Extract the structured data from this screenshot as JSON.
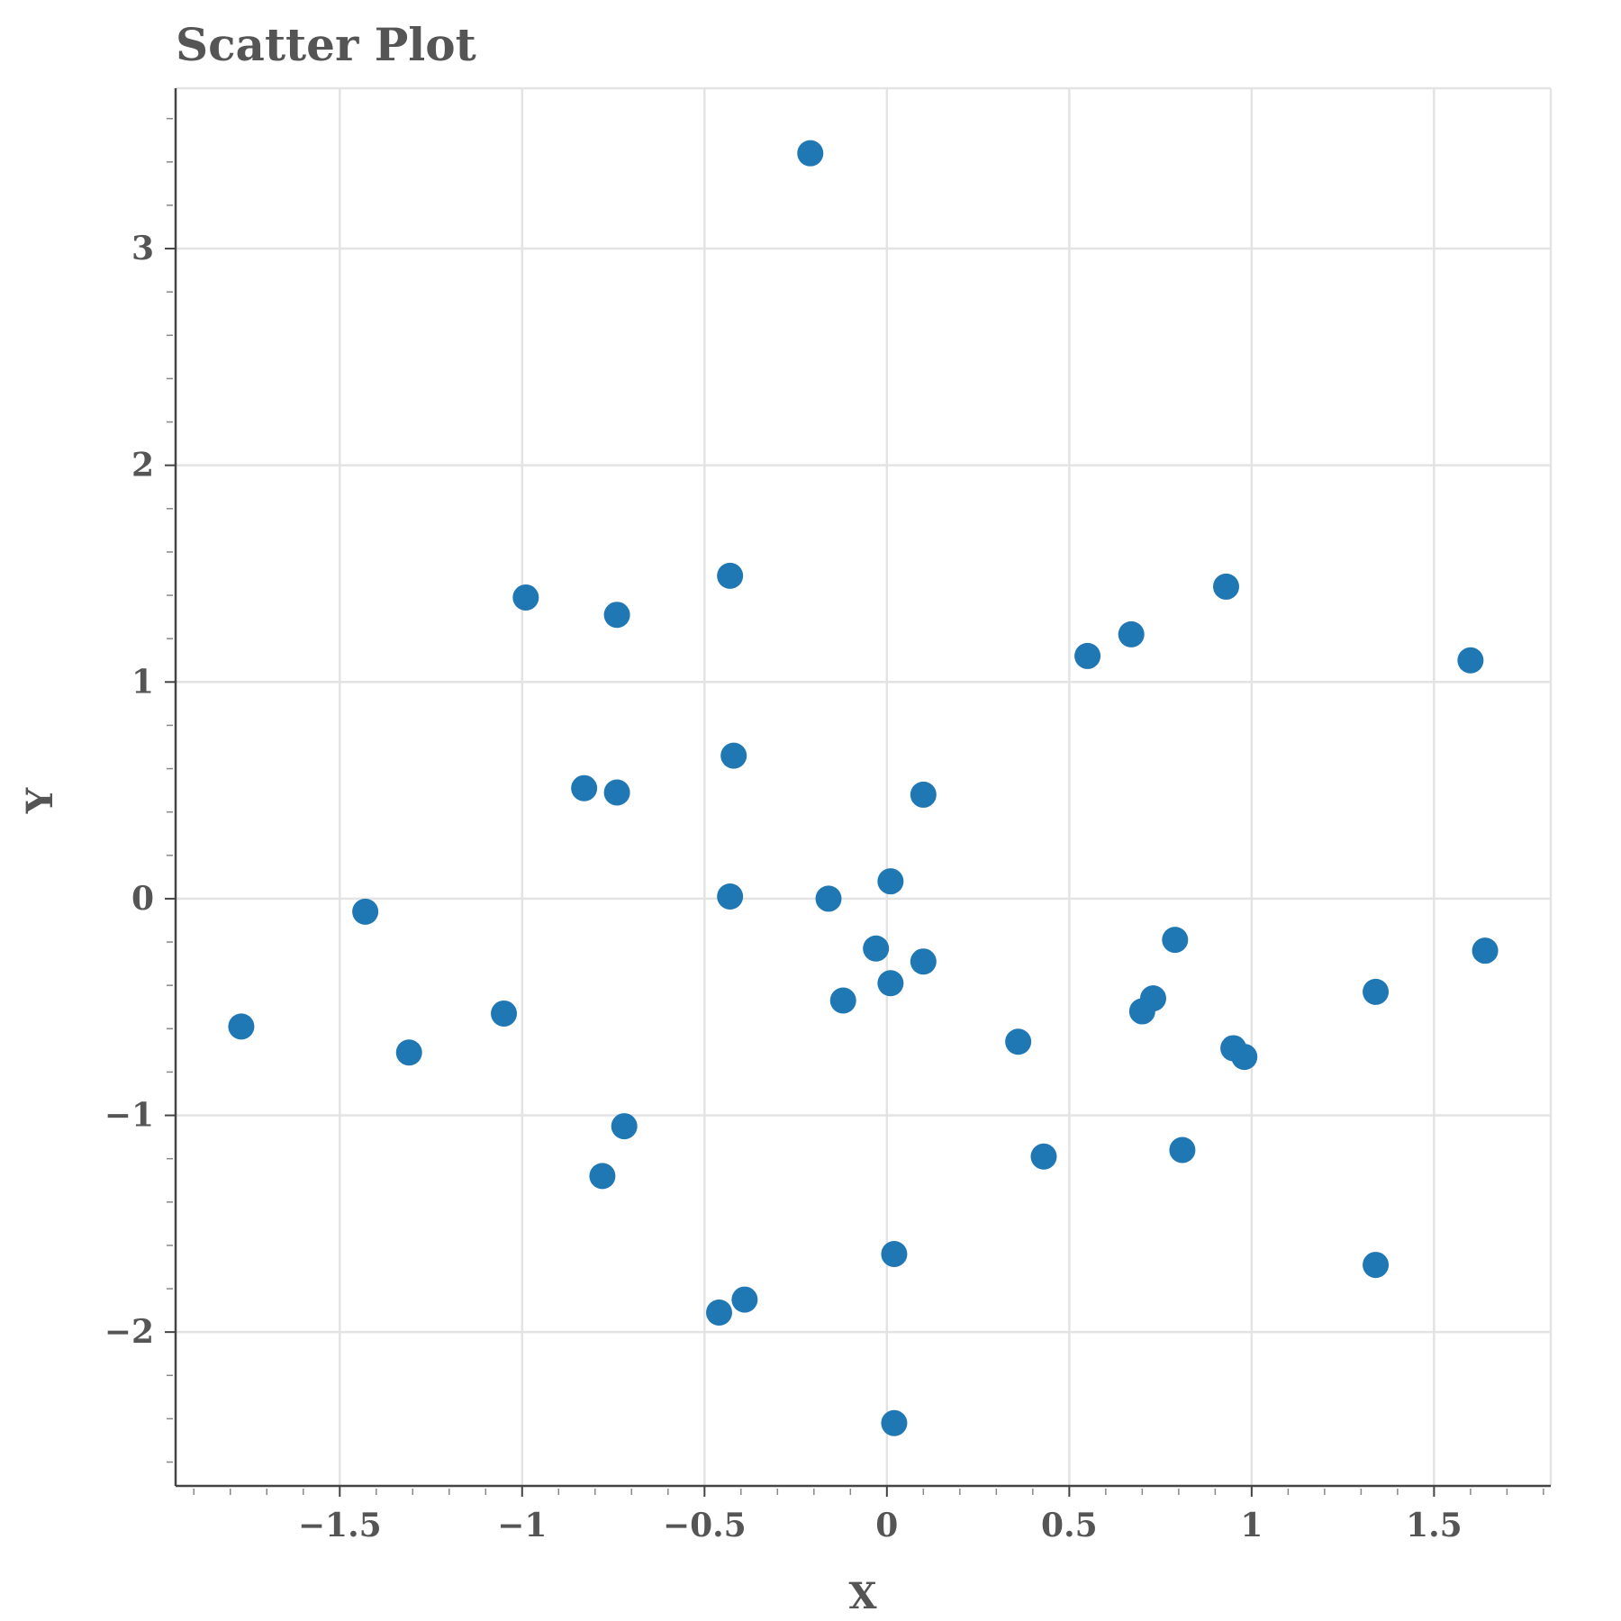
{
  "chart_data": {
    "type": "scatter",
    "title": "Scatter Plot",
    "xlabel": "X",
    "ylabel": "Y",
    "xlim": [
      -1.95,
      1.82
    ],
    "ylim": [
      -2.71,
      3.74
    ],
    "xticks": [
      -1.5,
      -1,
      -0.5,
      0,
      0.5,
      1,
      1.5
    ],
    "xtick_labels": [
      "−1.5",
      "−1",
      "−0.5",
      "0",
      "0.5",
      "1",
      "1.5"
    ],
    "yticks": [
      -2,
      -1,
      0,
      1,
      2,
      3
    ],
    "ytick_labels": [
      "−2",
      "−1",
      "0",
      "1",
      "2",
      "3"
    ],
    "grid": true,
    "color": "#1f77b4",
    "series": [
      {
        "points": [
          [
            -0.21,
            3.44
          ],
          [
            -0.43,
            1.49
          ],
          [
            -0.99,
            1.39
          ],
          [
            -0.74,
            1.31
          ],
          [
            0.93,
            1.44
          ],
          [
            0.67,
            1.22
          ],
          [
            0.55,
            1.12
          ],
          [
            1.6,
            1.1
          ],
          [
            -0.42,
            0.66
          ],
          [
            -0.83,
            0.51
          ],
          [
            -0.74,
            0.49
          ],
          [
            0.1,
            0.48
          ],
          [
            0.01,
            0.08
          ],
          [
            -0.43,
            0.01
          ],
          [
            -0.16,
            0.0
          ],
          [
            -1.43,
            -0.06
          ],
          [
            0.79,
            -0.19
          ],
          [
            -0.03,
            -0.23
          ],
          [
            0.1,
            -0.29
          ],
          [
            1.64,
            -0.24
          ],
          [
            0.01,
            -0.39
          ],
          [
            1.34,
            -0.43
          ],
          [
            -0.12,
            -0.47
          ],
          [
            0.73,
            -0.46
          ],
          [
            0.7,
            -0.52
          ],
          [
            -1.05,
            -0.53
          ],
          [
            -1.77,
            -0.59
          ],
          [
            0.36,
            -0.66
          ],
          [
            0.95,
            -0.69
          ],
          [
            0.98,
            -0.73
          ],
          [
            -1.31,
            -0.71
          ],
          [
            -0.72,
            -1.05
          ],
          [
            -0.78,
            -1.28
          ],
          [
            0.43,
            -1.19
          ],
          [
            0.81,
            -1.16
          ],
          [
            0.02,
            -1.64
          ],
          [
            1.34,
            -1.69
          ],
          [
            -0.39,
            -1.85
          ],
          [
            -0.46,
            -1.91
          ],
          [
            0.02,
            -2.42
          ]
        ]
      }
    ]
  }
}
